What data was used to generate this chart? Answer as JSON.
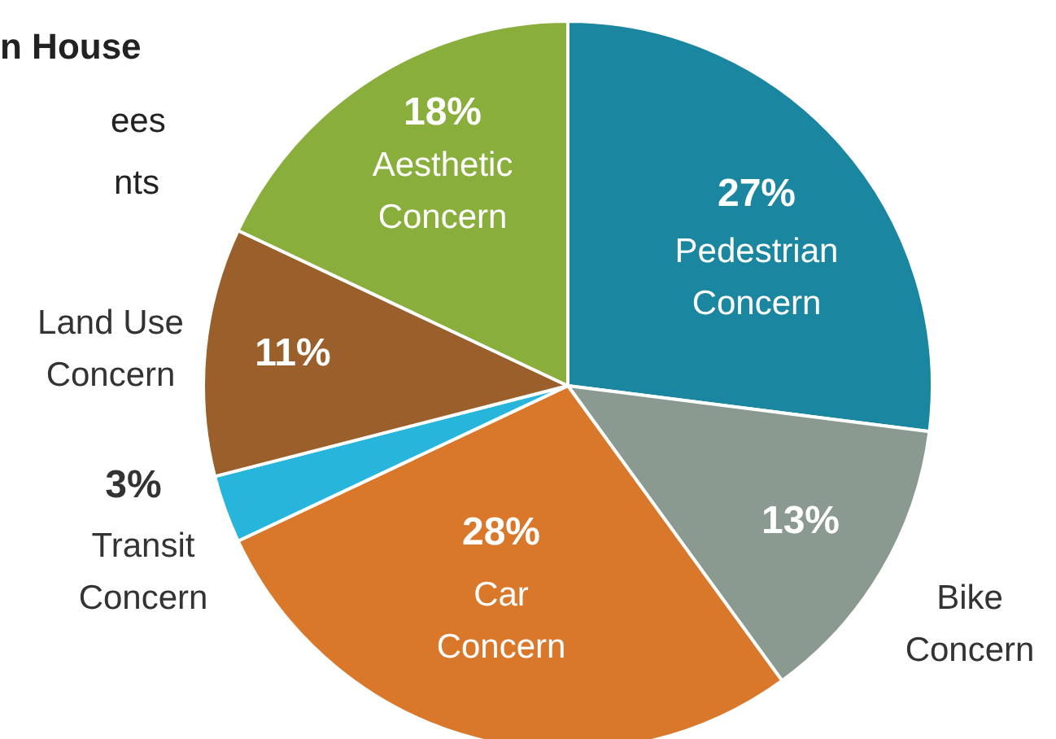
{
  "chart_data": {
    "type": "pie",
    "title": "n House",
    "annotations": [
      "ees",
      "nts"
    ],
    "categories": [
      "Pedestrian Concern",
      "Bike Concern",
      "Car Concern",
      "Transit Concern",
      "Land Use Concern",
      "Aesthetic Concern"
    ],
    "values": [
      27,
      13,
      28,
      3,
      11,
      18
    ],
    "value_labels": [
      "27%",
      "13%",
      "28%",
      "3%",
      "11%",
      "18%"
    ],
    "colors": [
      "#1a86a0",
      "#8a9a90",
      "#d9782a",
      "#27b5dc",
      "#9a5f2a",
      "#8aae3c"
    ],
    "legend": false
  }
}
